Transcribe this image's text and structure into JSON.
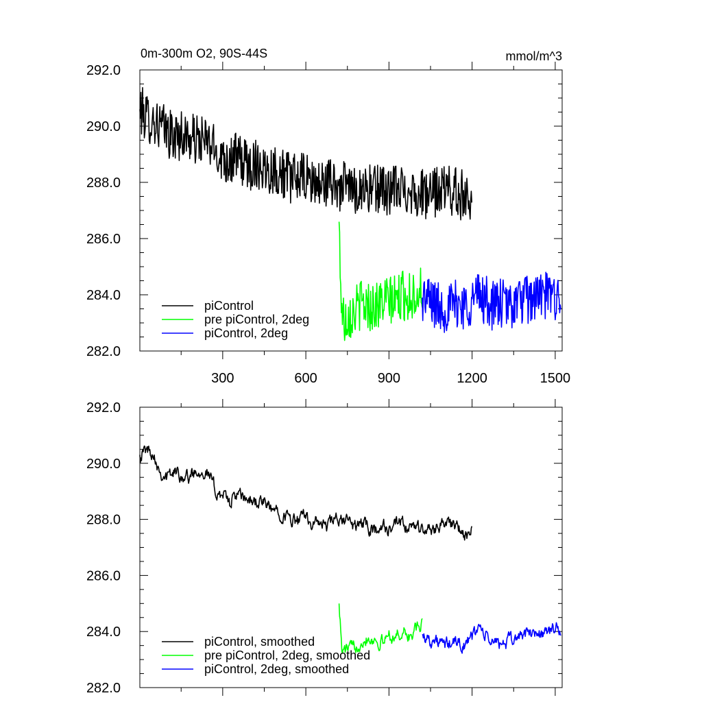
{
  "figure": {
    "title_left": "0m-300m O2, 90S-44S",
    "title_right": "mmol/m^3"
  },
  "chart_data": [
    {
      "type": "line",
      "xlim": [
        1,
        1525
      ],
      "ylim": [
        282.0,
        292.0
      ],
      "yticks": [
        "282.0",
        "284.0",
        "286.0",
        "288.0",
        "290.0",
        "292.0"
      ],
      "yticks_values": [
        282,
        284,
        286,
        288,
        290,
        292
      ],
      "xticks": [
        "300",
        "600",
        "900",
        "1200",
        "1500"
      ],
      "xticks_values": [
        300,
        600,
        900,
        1200,
        1500
      ],
      "legend_position": "bottom-left",
      "series": [
        {
          "name": "piControl",
          "color": "#000000",
          "x": [
            1,
            25,
            50,
            75,
            100,
            125,
            150,
            175,
            200,
            225,
            250,
            275,
            300,
            325,
            350,
            375,
            400,
            425,
            450,
            475,
            500,
            525,
            550,
            575,
            600,
            625,
            650,
            675,
            700,
            725,
            750,
            775,
            800,
            825,
            850,
            875,
            900,
            925,
            950,
            975,
            1000,
            1025,
            1050,
            1075,
            1100,
            1125,
            1150,
            1175,
            1200
          ],
          "y": [
            290.6,
            290.3,
            290.2,
            290.0,
            289.8,
            289.6,
            289.7,
            289.6,
            289.5,
            289.5,
            289.4,
            289.1,
            288.9,
            288.8,
            288.9,
            288.7,
            288.6,
            288.7,
            288.5,
            288.5,
            288.4,
            288.3,
            288.1,
            288.2,
            288.1,
            288.0,
            287.9,
            288.0,
            288.0,
            287.8,
            287.9,
            287.7,
            287.8,
            287.8,
            287.7,
            287.9,
            287.6,
            287.8,
            287.7,
            287.8,
            287.6,
            287.6,
            287.5,
            287.7,
            287.8,
            287.7,
            287.6,
            287.5,
            287.6
          ],
          "noise_amplitude": 0.9
        },
        {
          "name": "pre piControl, 2deg",
          "color": "#00ff00",
          "x": [
            720,
            725,
            730,
            740,
            750,
            775,
            800,
            825,
            850,
            875,
            900,
            925,
            950,
            975,
            1000,
            1020
          ],
          "y": [
            286.6,
            284.8,
            283.4,
            283.1,
            283.3,
            283.4,
            283.7,
            283.6,
            283.6,
            283.7,
            283.8,
            283.8,
            284.0,
            283.9,
            284.1,
            284.2
          ],
          "noise_amplitude": 0.9
        },
        {
          "name": "piControl, 2deg",
          "color": "#0000ff",
          "x": [
            1020,
            1050,
            1075,
            1100,
            1125,
            1150,
            1175,
            1200,
            1225,
            1250,
            1275,
            1300,
            1325,
            1350,
            1375,
            1400,
            1425,
            1450,
            1475,
            1500,
            1520
          ],
          "y": [
            283.9,
            283.8,
            283.6,
            283.5,
            283.6,
            283.7,
            283.6,
            283.8,
            284.0,
            283.8,
            283.6,
            283.7,
            283.6,
            283.7,
            283.8,
            283.8,
            283.9,
            284.0,
            283.9,
            284.0,
            284.0
          ],
          "noise_amplitude": 0.9
        }
      ]
    },
    {
      "type": "line",
      "xlim": [
        1,
        1525
      ],
      "ylim": [
        282.0,
        292.0
      ],
      "yticks": [
        "282.0",
        "284.0",
        "286.0",
        "288.0",
        "290.0",
        "292.0"
      ],
      "yticks_values": [
        282,
        284,
        286,
        288,
        290,
        292
      ],
      "xticks_values": [
        300,
        600,
        900,
        1200,
        1500
      ],
      "legend_position": "bottom-left",
      "series": [
        {
          "name": "piControl, smoothed",
          "color": "#000000",
          "x": [
            1,
            25,
            50,
            75,
            100,
            125,
            150,
            175,
            200,
            225,
            250,
            275,
            300,
            325,
            350,
            375,
            400,
            425,
            450,
            475,
            500,
            525,
            550,
            575,
            600,
            625,
            650,
            675,
            700,
            725,
            750,
            775,
            800,
            825,
            850,
            875,
            900,
            925,
            950,
            975,
            1000,
            1025,
            1050,
            1075,
            1100,
            1125,
            1150,
            1175,
            1200
          ],
          "y": [
            290.3,
            290.5,
            290.4,
            289.7,
            289.5,
            289.7,
            289.6,
            289.5,
            289.7,
            289.8,
            289.6,
            289.0,
            288.9,
            288.6,
            288.9,
            288.7,
            288.7,
            288.6,
            288.6,
            288.3,
            288.4,
            288.1,
            288.0,
            287.9,
            288.2,
            287.8,
            287.9,
            287.7,
            288.0,
            287.9,
            288.0,
            287.7,
            287.9,
            287.7,
            287.6,
            287.8,
            287.6,
            287.8,
            287.8,
            287.6,
            287.8,
            287.6,
            287.6,
            287.8,
            287.9,
            287.8,
            287.7,
            287.3,
            287.6
          ],
          "noise_amplitude": 0.35
        },
        {
          "name": "pre piControl, 2deg, smoothed",
          "color": "#00ff00",
          "x": [
            720,
            725,
            730,
            740,
            750,
            775,
            800,
            825,
            850,
            875,
            900,
            925,
            950,
            975,
            1000,
            1020
          ],
          "y": [
            285.0,
            284.2,
            283.3,
            283.3,
            283.4,
            283.4,
            283.7,
            283.8,
            283.7,
            283.6,
            283.9,
            283.8,
            284.0,
            283.8,
            284.1,
            284.2
          ],
          "noise_amplitude": 0.35
        },
        {
          "name": "piControl, 2deg, smoothed",
          "color": "#0000ff",
          "x": [
            1020,
            1050,
            1075,
            1100,
            1125,
            1150,
            1175,
            1200,
            1225,
            1250,
            1275,
            1300,
            1325,
            1350,
            1375,
            1400,
            1425,
            1450,
            1475,
            1500,
            1520
          ],
          "y": [
            283.9,
            283.7,
            283.6,
            283.5,
            283.6,
            283.6,
            283.5,
            283.8,
            284.2,
            283.8,
            283.6,
            283.6,
            283.6,
            283.7,
            283.9,
            283.9,
            284.0,
            283.9,
            284.0,
            284.1,
            284.0
          ],
          "noise_amplitude": 0.35
        }
      ]
    }
  ]
}
